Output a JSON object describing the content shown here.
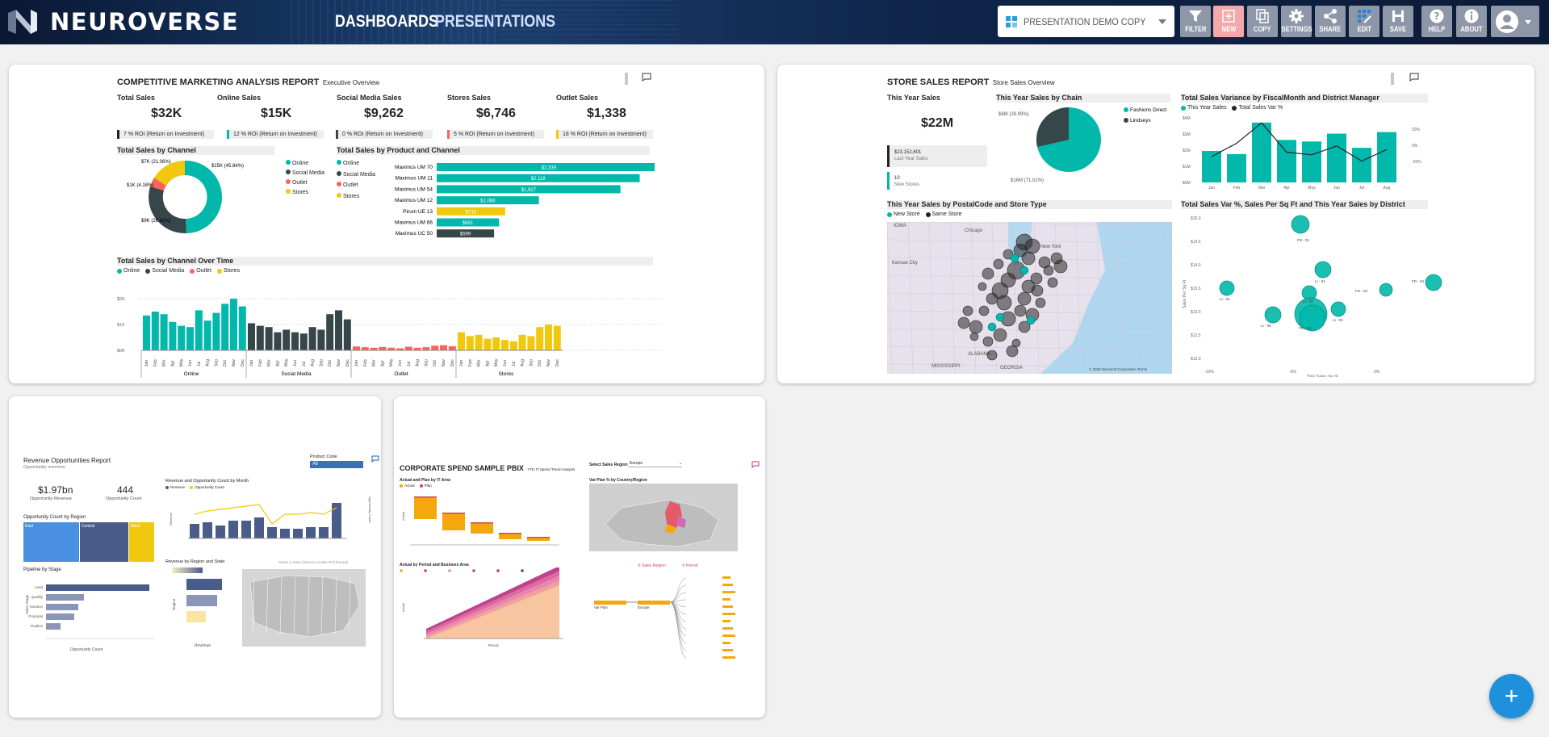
{
  "app": {
    "brand": "NEUROVERSE",
    "nav": [
      "DASHBOARDS",
      "PRESENTATIONS"
    ]
  },
  "presentation_select": {
    "value": "PRESENTATION DEMO COPY"
  },
  "toolbar": [
    "FILTER",
    "NEW",
    "COPY",
    "SETTINGS",
    "SHARE",
    "EDIT",
    "SAVE",
    "HELP",
    "ABOUT"
  ],
  "colors": {
    "teal": "#01b8aa",
    "dark": "#374649",
    "red": "#fd625e",
    "yellow": "#f2c80f",
    "accent": "#1e90dc"
  },
  "report1": {
    "title": "COMPETITIVE MARKETING ANALYSIS REPORT",
    "subtitle": "Executive Overview",
    "kpis": [
      {
        "label": "Total Sales",
        "value": "$32K",
        "note": "7 % ROI (Return on Investment)"
      },
      {
        "label": "Online Sales",
        "value": "$15K",
        "note": "12 % ROI (Return on Investment)"
      },
      {
        "label": "Social Media Sales",
        "value": "$9,262",
        "note": "0 % ROI (Return on Investment)"
      },
      {
        "label": "Stores Sales",
        "value": "$6,746",
        "note": "5 % ROI (Return on Investment)"
      },
      {
        "label": "Outlet Sales",
        "value": "$1,338",
        "note": "18 % ROI (Return on Investment)"
      }
    ],
    "donut_title": "Total Sales by Channel",
    "donut_labels": [
      "$15K (45.84%)",
      "$9K (28.92%)",
      "$1K (4.18%)",
      "$7K (21.06%)"
    ],
    "legend": [
      "Online",
      "Social Media",
      "Outlet",
      "Stores"
    ],
    "bar_title": "Total Sales by Product and Channel",
    "products": [
      {
        "name": "Maximus UM 70",
        "value": "$2,339"
      },
      {
        "name": "Maximus UM 11",
        "value": "$2,118"
      },
      {
        "name": "Maximus UM 54",
        "value": "$1,917"
      },
      {
        "name": "Maximus UM 12",
        "value": "$1,066"
      },
      {
        "name": "Pirum UE 13",
        "value": "$715"
      },
      {
        "name": "Maximus UM 66",
        "value": "$651"
      },
      {
        "name": "Maximus UC 50",
        "value": "$599"
      }
    ],
    "time_title": "Total Sales by Channel Over Time",
    "time_groups": [
      "Online",
      "Social Media",
      "Outlet",
      "Stores"
    ],
    "yticks": [
      "$2K",
      "$1K",
      "$0K"
    ],
    "months": [
      "Jan",
      "Feb",
      "Mar",
      "Apr",
      "May",
      "Jun",
      "Jul",
      "Aug",
      "Sep",
      "Oct",
      "Nov",
      "Dec"
    ]
  },
  "report2": {
    "title": "STORE SALES REPORT",
    "subtitle": "Store Sales Overview",
    "kpi_label": "This Year Sales",
    "kpi_value": "$22M",
    "last_year_value": "$23,152,601",
    "last_year_label": "Last Year Sales",
    "new_stores_value": "10",
    "new_stores_label": "New Stores",
    "pie_title": "This Year Sales by Chain",
    "pie_legend": [
      "Fashions Direct",
      "Lindseys"
    ],
    "pie_labels": [
      "$6M (28.99%)",
      "$16M (71.01%)"
    ],
    "variance_title": "Total Sales Variance by FiscalMonth and District Manager",
    "variance_legend": [
      "This Year Sales",
      "Total Sales Var %"
    ],
    "variance_months": [
      "Jan",
      "Feb",
      "Mar",
      "Apr",
      "May",
      "Jun",
      "Jul",
      "Aug"
    ],
    "variance_left_ticks": [
      "$4M",
      "$3M",
      "$2M",
      "$1M",
      "$0M"
    ],
    "variance_right_ticks": [
      "20%",
      "0%",
      "-20%"
    ],
    "map_title": "This Year Sales by PostalCode and Store Type",
    "map_legend": [
      "New Store",
      "Same Store"
    ],
    "map_labels": [
      "Chicago",
      "New York",
      "IOWA",
      "Kansas City",
      "ALABAMA",
      "MISSISSIPPI",
      "GEORGIA"
    ],
    "map_credit": "© 2023 Microsoft Corporation  Terms",
    "scatter_title": "Total Sales Var %, Sales Per Sq Ft and This Year Sales by District",
    "scatter_yticks": [
      "$15.0",
      "$14.5",
      "$14.0",
      "$13.5",
      "$13.0",
      "$12.5",
      "$12.0"
    ],
    "scatter_xticks": [
      "-10%",
      "-5%",
      "0%"
    ],
    "scatter_xlabel": "Total Sales Var %",
    "scatter_ylabel": "Sales Per Sq Ft",
    "scatter_labels": [
      "FD - 01",
      "FD - 02",
      "LI - 01",
      "LI - 02",
      "LI - 03",
      "LI - 04",
      "LI - 05",
      "FD - 03",
      "FD - 04"
    ]
  },
  "report3": {
    "title": "Revenue Opportunities Report",
    "subtitle": "Opportunity overview",
    "revenue_value": "$1.97bn",
    "revenue_label": "Opportunity Revenue",
    "count_value": "444",
    "count_label": "Opportunity Count",
    "filter_label": "Product Code",
    "filter_value": "All",
    "region_title": "Opportunity Count by Region",
    "region_labels": [
      "East",
      "Central",
      "West"
    ],
    "stage_title": "Pipeline by Stage",
    "stages": [
      "Lead",
      "Qualify",
      "Solution",
      "Proposal",
      "Finalize"
    ],
    "stage_xlabel": "Opportunity Count",
    "month_title": "Revenue and Opportunity Count by Month",
    "month_legend": [
      "Revenue",
      "Opportunity Count"
    ],
    "state_title": "Revenue by Region and State",
    "state_xlabel": "Revenue",
    "state_hint": "Select a State below to enable Drill through"
  },
  "report4": {
    "title": "CORPORATE SPEND SAMPLE PBIX",
    "subtitle": "YTD IT Spend Trend Analysis",
    "region_select_label": "Select Sales Region",
    "region_select_value": "Europe",
    "waterfall_title": "Actual and Plan by IT Area",
    "waterfall_legend": [
      "Actual",
      "Plan"
    ],
    "area_title": "Actual by Period and Business Area",
    "map_title": "Var Plan % by Country/Region",
    "tree_labels": [
      "Sales Region",
      "Period"
    ],
    "tree_nodes": [
      "Var Plan",
      "Europe"
    ],
    "period_xlabel": "Period"
  }
}
